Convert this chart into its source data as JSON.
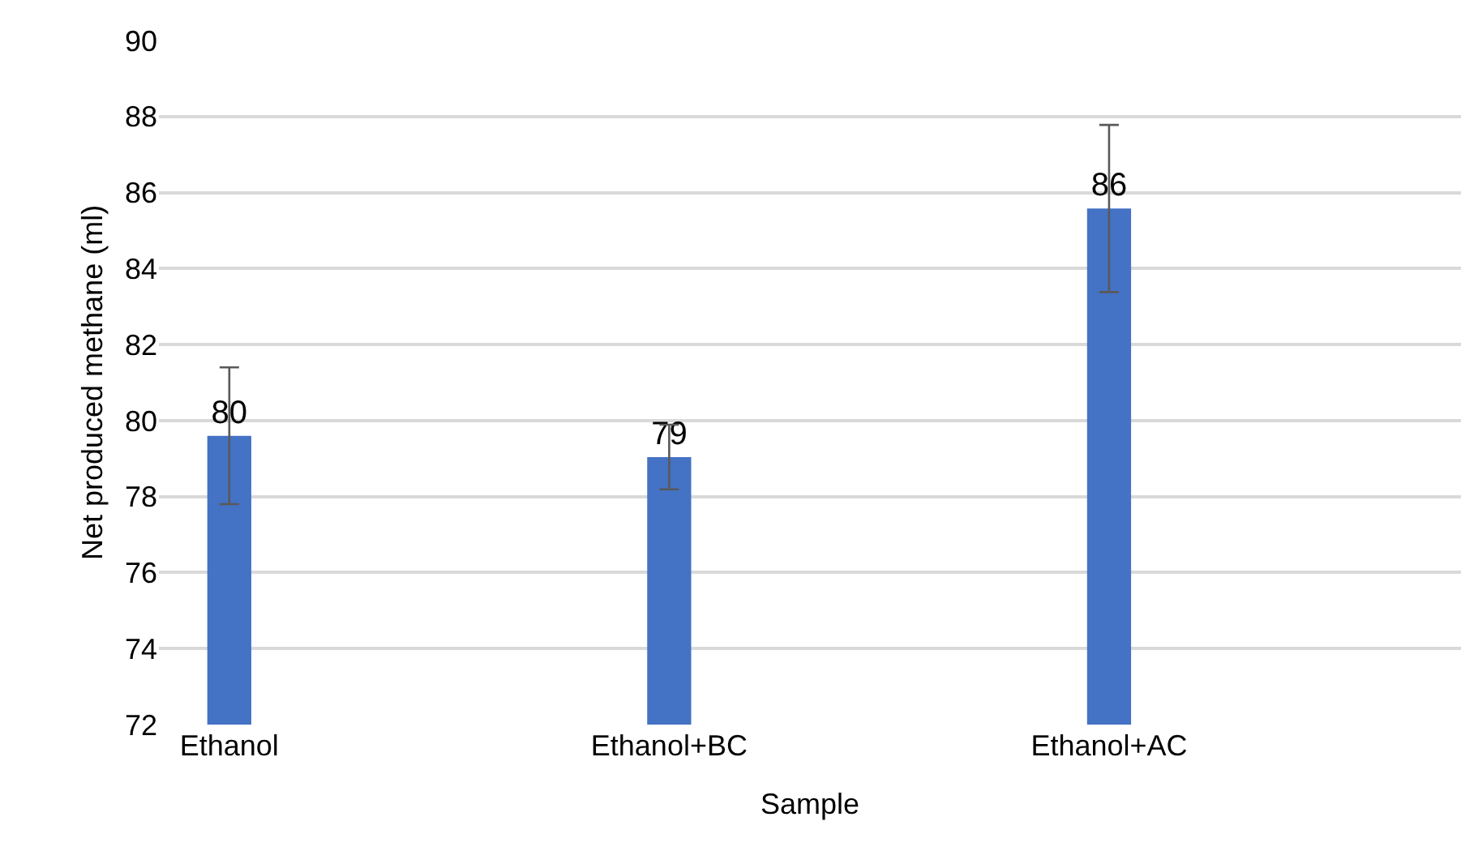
{
  "chart_data": {
    "type": "bar",
    "xlabel": "Sample",
    "ylabel": "Net produced methane (ml)",
    "categories": [
      "Ethanol",
      "Ethanol+BC",
      "Ethanol+AC"
    ],
    "values": [
      79.6,
      79.04,
      85.58
    ],
    "errors": [
      1.8,
      0.85,
      2.2
    ],
    "value_labels": [
      "80",
      "79",
      "86"
    ],
    "color": "#4472c4",
    "ylim": [
      72,
      90
    ],
    "yticks": [
      72,
      74,
      76,
      78,
      80,
      82,
      84,
      86,
      88,
      90
    ],
    "grid": "y",
    "legend": false
  }
}
